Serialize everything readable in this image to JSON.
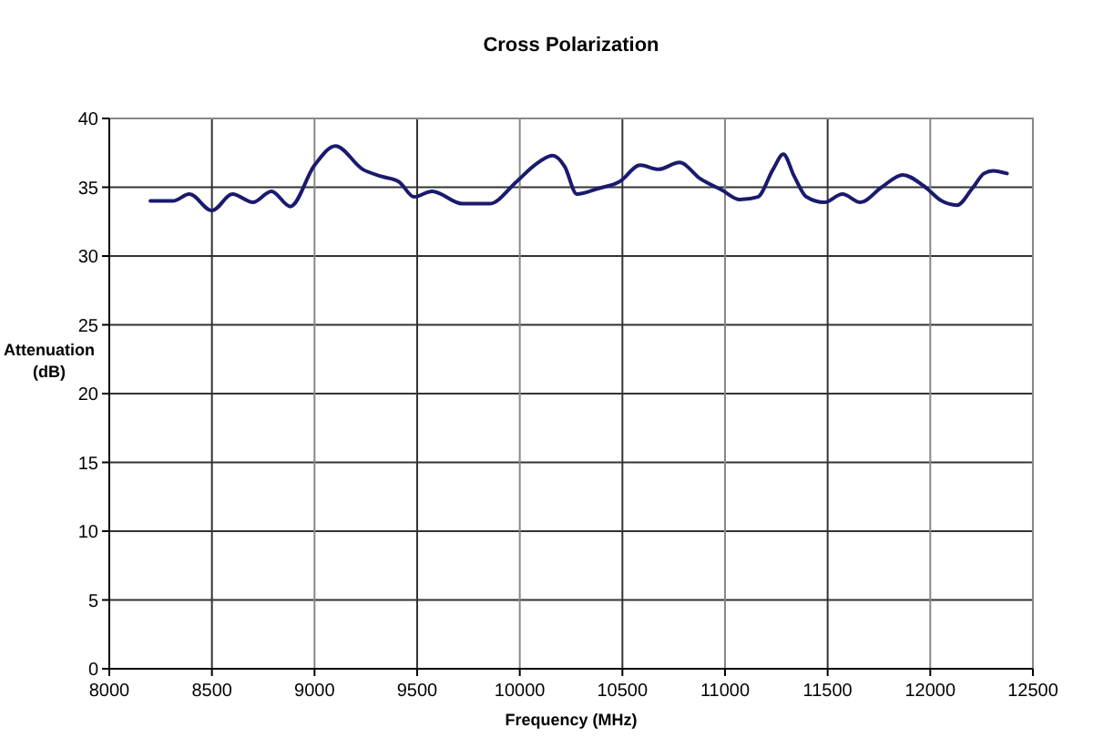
{
  "chart_data": {
    "type": "line",
    "title": "Cross Polarization",
    "xlabel": "Frequency (MHz)",
    "ylabel": "Attenuation (dB)",
    "x": [
      8200,
      8310,
      8390,
      8500,
      8600,
      8700,
      8790,
      8882,
      9000,
      9102,
      9235,
      9323,
      9411,
      9485,
      9573,
      9720,
      9852,
      9984,
      10072,
      10160,
      10219,
      10278,
      10381,
      10485,
      10587,
      10675,
      10778,
      10881,
      10984,
      11072,
      11160,
      11234,
      11284,
      11337,
      11396,
      11484,
      11572,
      11660,
      11763,
      11866,
      11968,
      12056,
      12130,
      12204,
      12262,
      12306,
      12374
    ],
    "series": [
      {
        "color": "#1a1a6e",
        "values": [
          34.0,
          34.0,
          34.5,
          33.3,
          34.5,
          33.9,
          34.7,
          33.6,
          36.6,
          38.0,
          36.3,
          35.8,
          35.4,
          34.3,
          34.7,
          33.8,
          33.8,
          35.4,
          36.6,
          37.3,
          36.5,
          34.5,
          34.9,
          35.4,
          36.6,
          36.3,
          36.8,
          35.6,
          34.8,
          34.1,
          34.3,
          36.3,
          37.4,
          35.8,
          34.3,
          33.9,
          34.5,
          33.9,
          35.0,
          35.9,
          35.1,
          34.0,
          33.7,
          34.9,
          36.0,
          36.2,
          36.0
        ]
      }
    ],
    "xlim": [
      8000,
      12500
    ],
    "xticks": [
      8000,
      8500,
      9000,
      9500,
      10000,
      10500,
      11000,
      11500,
      12000,
      12500
    ],
    "ylim": [
      0,
      40
    ],
    "yticks": [
      0,
      5,
      10,
      15,
      20,
      25,
      30,
      35,
      40
    ],
    "grid": true,
    "marker": "none",
    "line_style": "solid"
  }
}
